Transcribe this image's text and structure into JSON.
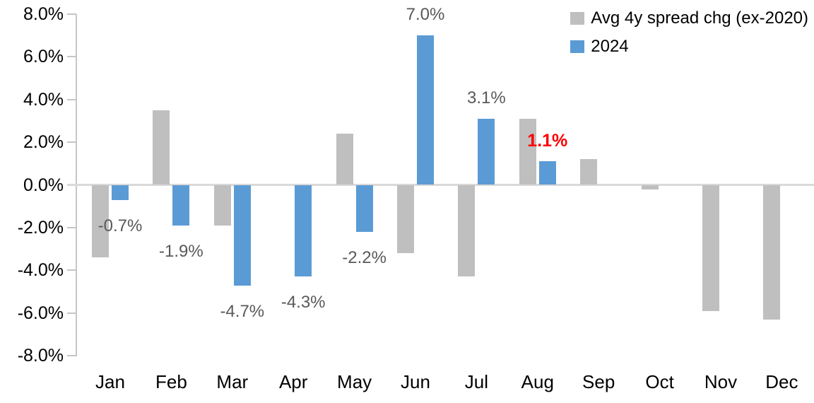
{
  "chart_data": {
    "type": "bar",
    "title": "",
    "xlabel": "",
    "ylabel": "",
    "categories": [
      "Jan",
      "Feb",
      "Mar",
      "Apr",
      "May",
      "Jun",
      "Jul",
      "Aug",
      "Sep",
      "Oct",
      "Nov",
      "Dec"
    ],
    "series": [
      {
        "name": "Avg 4y spread chg (ex-2020)",
        "key": "avg-4y",
        "color": "#bfbfbf",
        "values": [
          -3.4,
          3.5,
          -1.9,
          0.0,
          2.4,
          -3.2,
          -4.3,
          3.1,
          1.2,
          -0.2,
          -5.9,
          -6.3
        ]
      },
      {
        "name": "2024",
        "key": "2024",
        "color": "#5b9bd5",
        "values": [
          -0.7,
          -1.9,
          -4.7,
          -4.3,
          -2.2,
          7.0,
          3.1,
          1.1,
          null,
          null,
          null,
          null
        ],
        "data_labels": [
          {
            "text": "-0.7%",
            "color": "#595959",
            "bold": false
          },
          {
            "text": "-1.9%",
            "color": "#595959",
            "bold": false
          },
          {
            "text": "-4.7%",
            "color": "#595959",
            "bold": false
          },
          {
            "text": "-4.3%",
            "color": "#595959",
            "bold": false
          },
          {
            "text": "-2.2%",
            "color": "#595959",
            "bold": false
          },
          {
            "text": "7.0%",
            "color": "#595959",
            "bold": false
          },
          {
            "text": "3.1%",
            "color": "#595959",
            "bold": false
          },
          {
            "text": "1.1%",
            "color": "#ff0000",
            "bold": true
          },
          null,
          null,
          null,
          null
        ]
      }
    ],
    "y_axis": {
      "ticks": [
        "8.0%",
        "6.0%",
        "4.0%",
        "2.0%",
        "0.0%",
        "-2.0%",
        "-4.0%",
        "-6.0%",
        "-8.0%"
      ],
      "max": 8,
      "min": -8,
      "step": 2
    },
    "legend": {
      "position": "top-right"
    },
    "grid": "off",
    "accent_colors": {
      "bar_gray": "#bfbfbf",
      "bar_blue": "#5b9bd5",
      "highlight_red": "#ff0000",
      "axis_gray": "#c6c6c6",
      "zero_line_gray": "#d9d9d9"
    }
  }
}
